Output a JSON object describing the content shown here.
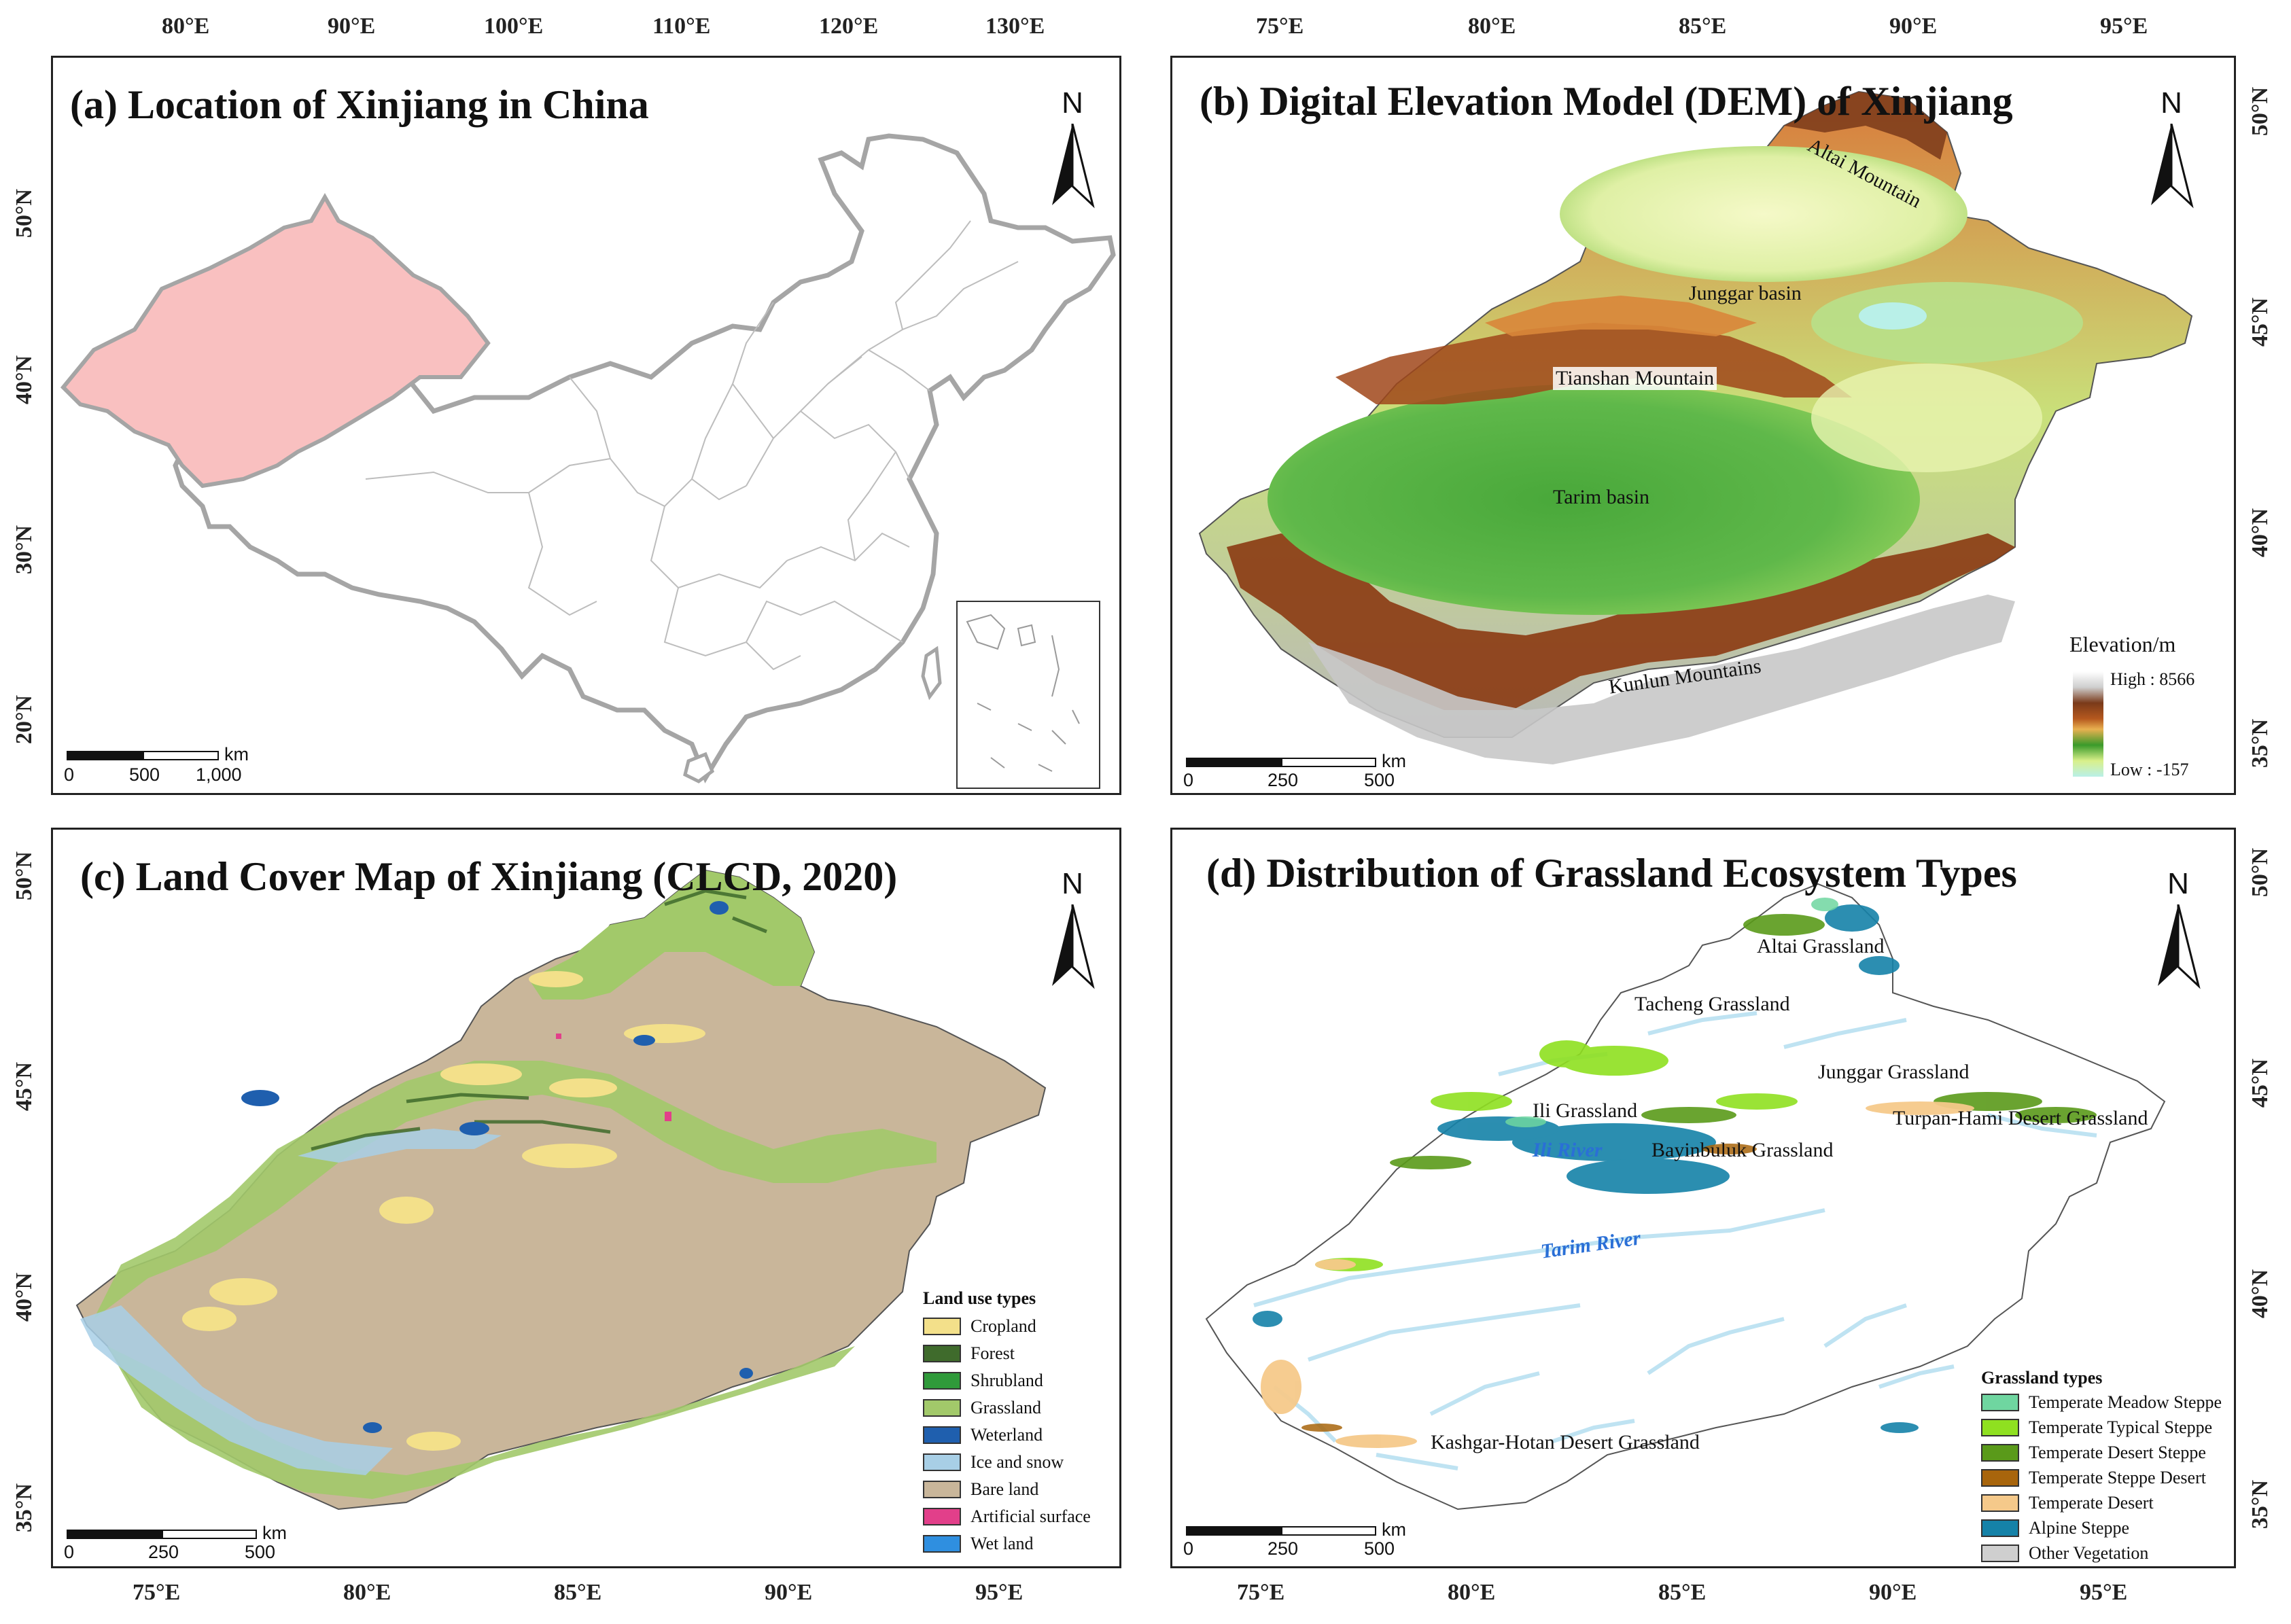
{
  "panel_a": {
    "title": "(a) Location of Xinjiang in China",
    "lon_ticks": [
      "80°E",
      "90°E",
      "100°E",
      "110°E",
      "120°E",
      "130°E"
    ],
    "lat_ticks": [
      "50°N",
      "40°N",
      "30°N",
      "20°N"
    ],
    "north": "N",
    "scale": {
      "unit": "km",
      "labels": [
        "0",
        "500",
        "1,000"
      ]
    },
    "highlight_color": "#f9c0c0"
  },
  "panel_b": {
    "title": "(b) Digital Elevation Model (DEM) of Xinjiang",
    "lon_ticks": [
      "75°E",
      "80°E",
      "85°E",
      "90°E",
      "95°E"
    ],
    "lat_ticks": [
      "50°N",
      "45°N",
      "40°N",
      "35°N"
    ],
    "north": "N",
    "scale": {
      "unit": "km",
      "labels": [
        "0",
        "250",
        "500"
      ]
    },
    "labels": {
      "altai": "Altai Mountain",
      "junggar": "Junggar basin",
      "tianshan": "Tianshan Mountain",
      "tarim": "Tarim basin",
      "kunlun": "Kunlun Mountains"
    },
    "legend": {
      "title": "Elevation/m",
      "high": "High : 8566",
      "low": "Low : -157"
    }
  },
  "panel_c": {
    "title": "(c) Land Cover Map of Xinjiang (CLCD, 2020)",
    "lon_ticks": [
      "75°E",
      "80°E",
      "85°E",
      "90°E",
      "95°E"
    ],
    "lat_ticks": [
      "50°N",
      "45°N",
      "40°N",
      "35°N"
    ],
    "north": "N",
    "scale": {
      "unit": "km",
      "labels": [
        "0",
        "250",
        "500"
      ]
    },
    "legend": {
      "title": "Land use types",
      "items": [
        {
          "label": "Cropland",
          "color": "#f3e08a"
        },
        {
          "label": "Forest",
          "color": "#3f6b2c"
        },
        {
          "label": "Shrubland",
          "color": "#2f9a3a"
        },
        {
          "label": "Grassland",
          "color": "#a2c96a"
        },
        {
          "label": "Weterland",
          "color": "#1f5fae"
        },
        {
          "label": "Ice and snow",
          "color": "#a8cfe6"
        },
        {
          "label": "Bare land",
          "color": "#c9b69a"
        },
        {
          "label": "Artificial surface",
          "color": "#e23f8a"
        },
        {
          "label": "Wet land",
          "color": "#2f8fe0"
        }
      ]
    }
  },
  "panel_d": {
    "title": "(d) Distribution of Grassland Ecosystem Types",
    "lon_ticks": [
      "75°E",
      "80°E",
      "85°E",
      "90°E",
      "95°E"
    ],
    "lat_ticks": [
      "50°N",
      "45°N",
      "40°N",
      "35°N"
    ],
    "north": "N",
    "scale": {
      "unit": "km",
      "labels": [
        "0",
        "250",
        "500"
      ]
    },
    "labels": {
      "altai": "Altai Grassland",
      "tacheng": "Tacheng Grassland",
      "junggar": "Junggar Grassland",
      "ili": "Ili Grassland",
      "turpan": "Turpan-Hami Desert Grassland",
      "ili_river": "Ili River",
      "bayinbuluk": "Bayinbuluk Grassland",
      "tarim_river": "Tarim River",
      "kashgar": "Kashgar-Hotan Desert Grassland"
    },
    "legend": {
      "title": "Grassland types",
      "items": [
        {
          "label": "Temperate Meadow Steppe",
          "color": "#6fd6a0"
        },
        {
          "label": "Temperate Typical Steppe",
          "color": "#8fe020"
        },
        {
          "label": "Temperate Desert Steppe",
          "color": "#5a9a1a"
        },
        {
          "label": "Temperate Steppe Desert",
          "color": "#a8650c"
        },
        {
          "label": "Temperate Desert",
          "color": "#f5c98a"
        },
        {
          "label": "Alpine Steppe",
          "color": "#1582a8"
        },
        {
          "label": "Other Vegetation",
          "color": "#cfcfcf"
        }
      ]
    }
  }
}
